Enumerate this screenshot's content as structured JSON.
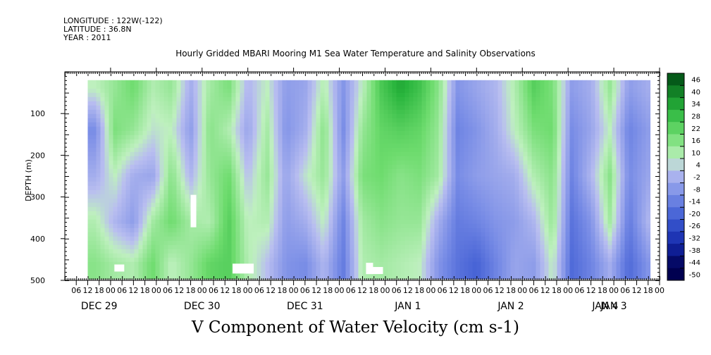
{
  "meta": {
    "longitude": "LONGITUDE : 122W(-122)",
    "latitude": "LATITUDE : 36.8N",
    "year": "YEAR : 2011"
  },
  "chart_data": {
    "type": "heatmap",
    "title": "Hourly Gridded MBARI Mooring M1 Sea Water Temperature and Salinity Observations",
    "subtitle": "V Component of Water Velocity (cm s-1)",
    "ylabel": "DEPTH (m)",
    "xlabel": "",
    "y_axis": {
      "range": [
        500,
        0
      ],
      "inverted": true,
      "ticks": [
        100,
        200,
        300,
        400,
        500
      ]
    },
    "x_axis": {
      "unit": "hours from 00 Dec 29",
      "range": [
        -24,
        288
      ],
      "hour_ticks": [
        {
          "h": -18,
          "label": "06"
        },
        {
          "h": -12,
          "label": "12"
        },
        {
          "h": -6,
          "label": "18"
        },
        {
          "h": 0,
          "label": "00"
        },
        {
          "h": 6,
          "label": "06"
        },
        {
          "h": 12,
          "label": "12"
        },
        {
          "h": 18,
          "label": "18"
        },
        {
          "h": 24,
          "label": "00"
        },
        {
          "h": 30,
          "label": "06"
        },
        {
          "h": 36,
          "label": "12"
        },
        {
          "h": 42,
          "label": "18"
        },
        {
          "h": 48,
          "label": "00"
        },
        {
          "h": 54,
          "label": "06"
        },
        {
          "h": 60,
          "label": "12"
        },
        {
          "h": 66,
          "label": "18"
        },
        {
          "h": 72,
          "label": "00"
        },
        {
          "h": 78,
          "label": "06"
        },
        {
          "h": 84,
          "label": "12"
        },
        {
          "h": 90,
          "label": "18"
        },
        {
          "h": 96,
          "label": "00"
        },
        {
          "h": 102,
          "label": "06"
        },
        {
          "h": 108,
          "label": "12"
        },
        {
          "h": 114,
          "label": "18"
        },
        {
          "h": 120,
          "label": "00"
        },
        {
          "h": 126,
          "label": "06"
        },
        {
          "h": 132,
          "label": "12"
        },
        {
          "h": 138,
          "label": "18"
        },
        {
          "h": 144,
          "label": "00"
        },
        {
          "h": 150,
          "label": "06"
        },
        {
          "h": 156,
          "label": "12"
        },
        {
          "h": 162,
          "label": "18"
        },
        {
          "h": 168,
          "label": "00"
        },
        {
          "h": 174,
          "label": "06"
        },
        {
          "h": 180,
          "label": "12"
        },
        {
          "h": 186,
          "label": "18"
        },
        {
          "h": 192,
          "label": "00"
        },
        {
          "h": 198,
          "label": "06"
        },
        {
          "h": 204,
          "label": "12"
        },
        {
          "h": 210,
          "label": "18"
        },
        {
          "h": 216,
          "label": "00"
        },
        {
          "h": 222,
          "label": "06"
        },
        {
          "h": 228,
          "label": "12"
        },
        {
          "h": 234,
          "label": "18"
        },
        {
          "h": 240,
          "label": "00"
        },
        {
          "h": 246,
          "label": "06"
        },
        {
          "h": 252,
          "label": "12"
        },
        {
          "h": 258,
          "label": "18"
        },
        {
          "h": 264,
          "label": "00"
        },
        {
          "h": 270,
          "label": "06"
        },
        {
          "h": 276,
          "label": "12"
        },
        {
          "h": 282,
          "label": "18"
        },
        {
          "h": 288,
          "label": "00"
        }
      ],
      "day_labels": [
        {
          "h": -6,
          "label": "DEC 29"
        },
        {
          "h": 48,
          "label": "DEC 30"
        },
        {
          "h": 102,
          "label": "DEC 31"
        },
        {
          "h": 156,
          "label": "JAN  1"
        },
        {
          "h": 210,
          "label": "JAN  2"
        },
        {
          "h": 264,
          "label": "JAN  3"
        },
        {
          "h": 318,
          "label": "JAN  4"
        }
      ]
    },
    "data_extent": {
      "hours": [
        -12,
        282
      ],
      "depth": [
        20,
        490
      ]
    },
    "columns": [
      {
        "h": -8,
        "v": [
          4,
          -14,
          -6,
          6,
          12
        ]
      },
      {
        "h": 2,
        "v": [
          10,
          14,
          4,
          -4,
          8
        ]
      },
      {
        "h": 12,
        "v": [
          16,
          10,
          -6,
          -10,
          6
        ]
      },
      {
        "h": 22,
        "v": [
          6,
          2,
          -8,
          8,
          16
        ]
      },
      {
        "h": 32,
        "v": [
          10,
          4,
          12,
          16,
          4
        ]
      },
      {
        "h": 42,
        "v": [
          -6,
          -10,
          -4,
          8,
          10
        ]
      },
      {
        "h": 52,
        "v": [
          8,
          12,
          10,
          6,
          18
        ]
      },
      {
        "h": 62,
        "v": [
          14,
          6,
          16,
          20,
          20
        ]
      },
      {
        "h": 72,
        "v": [
          -4,
          -8,
          -2,
          4,
          6
        ]
      },
      {
        "h": 82,
        "v": [
          4,
          8,
          10,
          6,
          -2
        ]
      },
      {
        "h": 92,
        "v": [
          -10,
          -12,
          -8,
          -10,
          -12
        ]
      },
      {
        "h": 102,
        "v": [
          -8,
          -6,
          2,
          -6,
          -14
        ]
      },
      {
        "h": 112,
        "v": [
          6,
          12,
          10,
          4,
          -4
        ]
      },
      {
        "h": 122,
        "v": [
          -12,
          -14,
          -10,
          -16,
          -18
        ]
      },
      {
        "h": 132,
        "v": [
          4,
          10,
          14,
          8,
          6
        ]
      },
      {
        "h": 142,
        "v": [
          22,
          18,
          16,
          12,
          8
        ]
      },
      {
        "h": 152,
        "v": [
          30,
          20,
          12,
          10,
          6
        ]
      },
      {
        "h": 162,
        "v": [
          24,
          18,
          14,
          10,
          4
        ]
      },
      {
        "h": 172,
        "v": [
          12,
          10,
          8,
          -6,
          -12
        ]
      },
      {
        "h": 182,
        "v": [
          -12,
          -16,
          -14,
          -18,
          -20
        ]
      },
      {
        "h": 192,
        "v": [
          -8,
          -12,
          -10,
          -16,
          -24
        ]
      },
      {
        "h": 202,
        "v": [
          -4,
          -6,
          -8,
          -12,
          -16
        ]
      },
      {
        "h": 212,
        "v": [
          6,
          4,
          -6,
          -10,
          -8
        ]
      },
      {
        "h": 222,
        "v": [
          20,
          14,
          6,
          -4,
          -10
        ]
      },
      {
        "h": 232,
        "v": [
          14,
          16,
          12,
          10,
          4
        ]
      },
      {
        "h": 242,
        "v": [
          -10,
          -14,
          -16,
          -20,
          -22
        ]
      },
      {
        "h": 252,
        "v": [
          -6,
          -8,
          -4,
          -12,
          -16
        ]
      },
      {
        "h": 262,
        "v": [
          10,
          4,
          12,
          8,
          -6
        ]
      },
      {
        "h": 272,
        "v": [
          -10,
          -16,
          -14,
          -18,
          -22
        ]
      },
      {
        "h": 282,
        "v": [
          -6,
          -10,
          -8,
          -4,
          -12
        ]
      }
    ],
    "column_depths": [
      40,
      140,
      250,
      360,
      460
    ],
    "colorbar": {
      "levels": [
        -50,
        -44,
        -38,
        -32,
        -26,
        -20,
        -14,
        -8,
        -2,
        4,
        10,
        16,
        22,
        28,
        34,
        40,
        46
      ],
      "labels": [
        "46",
        "40",
        "34",
        "28",
        "22",
        "16",
        "10",
        "4",
        "-2",
        "-8",
        "-14",
        "-20",
        "-26",
        "-32",
        "-38",
        "-44",
        "-50"
      ]
    }
  }
}
